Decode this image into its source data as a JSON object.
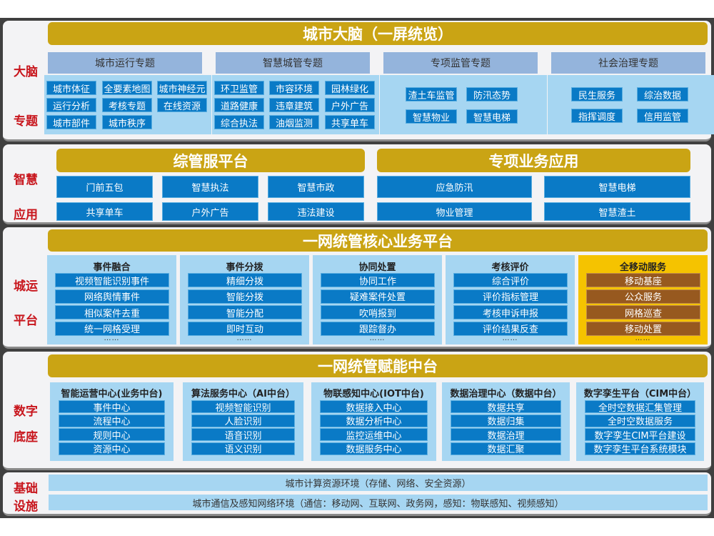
{
  "colors": {
    "gold": "#caa414",
    "blue_button": "#0a7ac6",
    "light_blue": "#a6d6f2",
    "header_blue": "#94b4dc",
    "label_red": "#c8161d",
    "mobile_yellow": "#f5c300",
    "mobile_brown": "#97591f"
  },
  "brain": {
    "title": "城市大脑（一屏统览）",
    "labels": [
      "大脑",
      "专题"
    ],
    "groups": [
      {
        "header": "城市运行专题",
        "items": [
          "城市体征",
          "全要素地图",
          "城市神经元",
          "运行分析",
          "考核专题",
          "在线资源",
          "城市部件",
          "城市秩序"
        ]
      },
      {
        "header": "智慧城管专题",
        "items": [
          "环卫监管",
          "市容环境",
          "园林绿化",
          "道路健康",
          "违章建筑",
          "户外广告",
          "综合执法",
          "油烟监测",
          "共享单车"
        ]
      },
      {
        "header": "专项监管专题",
        "items": [
          "渣土车监管",
          "防汛态势",
          "智慧物业",
          "智慧电梯"
        ]
      },
      {
        "header": "社会治理专题",
        "items": [
          "民生服务",
          "综治数据",
          "指挥调度",
          "信用监管"
        ]
      }
    ]
  },
  "apps": {
    "labels": [
      "智慧",
      "应用"
    ],
    "left": {
      "title": "综管服平台",
      "items": [
        "门前五包",
        "智慧执法",
        "智慧市政",
        "共享单车",
        "户外广告",
        "违法建设"
      ]
    },
    "right": {
      "title": "专项业务应用",
      "items": [
        "应急防汛",
        "智慧电梯",
        "物业管理",
        "智慧渣土"
      ]
    }
  },
  "core": {
    "title": "一网统管核心业务平台",
    "labels": [
      "城运",
      "平台"
    ],
    "columns": [
      {
        "header": "事件融合",
        "items": [
          "视频智能识别事件",
          "网络舆情事件",
          "相似案件去重",
          "统一网格受理"
        ],
        "more": "……"
      },
      {
        "header": "事件分拨",
        "items": [
          "精细分拨",
          "智能分拨",
          "智能分配",
          "即时互动"
        ],
        "more": "……"
      },
      {
        "header": "协同处置",
        "items": [
          "协同工作",
          "疑难案件处置",
          "吹哨报到",
          "跟踪督办"
        ],
        "more": "……"
      },
      {
        "header": "考核评价",
        "items": [
          "综合评价",
          "评价指标管理",
          "考核申诉申报",
          "评价结果反查"
        ],
        "more": "……"
      },
      {
        "header": "全移动服务",
        "items": [
          "移动基座",
          "公众服务",
          "网格巡查",
          "移动处置"
        ],
        "more": "……"
      }
    ]
  },
  "enable": {
    "title": "一网统管赋能中台",
    "labels": [
      "数字",
      "底座"
    ],
    "columns": [
      {
        "header": "智能运营中心(业务中台)",
        "items": [
          "事件中心",
          "流程中心",
          "规则中心",
          "资源中心"
        ]
      },
      {
        "header": "算法服务中心（AI中台）",
        "items": [
          "视频智能识别",
          "人脸识别",
          "语音识别",
          "语义识别"
        ]
      },
      {
        "header": "物联感知中心(IOT中台)",
        "items": [
          "数据接入中心",
          "数据分析中心",
          "监控运维中心",
          "数据服务中心"
        ]
      },
      {
        "header": "数据治理中心（数据中台）",
        "items": [
          "数据共享",
          "数据归集",
          "数据治理",
          "数据汇聚"
        ]
      },
      {
        "header": "数字孪生平台（CIM中台）",
        "items": [
          "全时空数据汇集管理",
          "全时空数据服务",
          "数字孪生CIM平台建设",
          "数字孪生平台系统模块"
        ]
      }
    ]
  },
  "infra": {
    "labels": [
      "基础",
      "设施"
    ],
    "rows": [
      "城市计算资源环境（存储、网络、安全资源）",
      "城市通信及感知网络环境（通信：移动网、互联网、政务网，感知：物联感知、视频感知）"
    ]
  }
}
